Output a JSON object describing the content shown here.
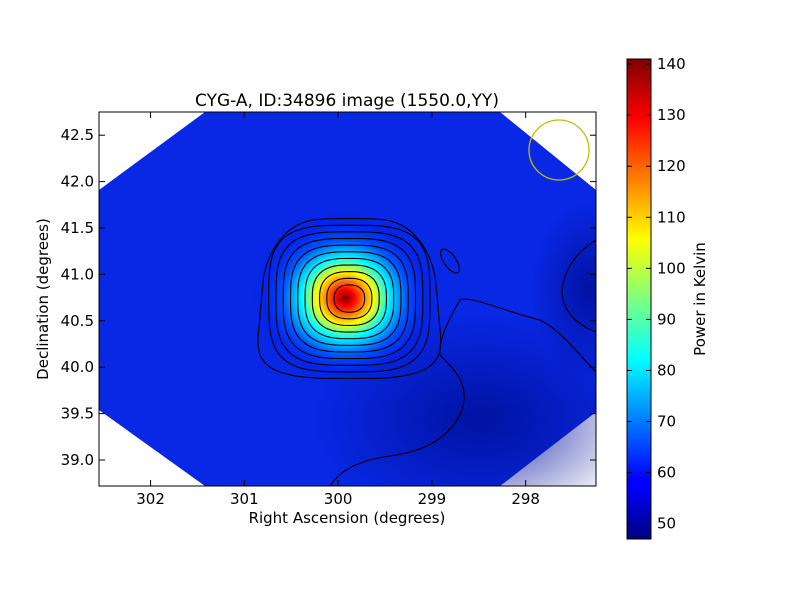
{
  "chart_data": {
    "type": "heatmap",
    "title": "CYG-A, ID:34896 image (1550.0,YY)",
    "xlabel": "Right Ascension (degrees)",
    "ylabel": "Declination (degrees)",
    "xlim": [
      302.55,
      297.25
    ],
    "ylim": [
      38.72,
      42.75
    ],
    "x_ticks": [
      {
        "value": 302,
        "label": "302"
      },
      {
        "value": 301,
        "label": "301"
      },
      {
        "value": 300,
        "label": "300"
      },
      {
        "value": 299,
        "label": "299"
      },
      {
        "value": 298,
        "label": "298"
      }
    ],
    "y_ticks": [
      {
        "value": 39.0,
        "label": "39.0"
      },
      {
        "value": 39.5,
        "label": "39.5"
      },
      {
        "value": 40.0,
        "label": "40.0"
      },
      {
        "value": 40.5,
        "label": "40.5"
      },
      {
        "value": 41.0,
        "label": "41.0"
      },
      {
        "value": 41.5,
        "label": "41.5"
      },
      {
        "value": 42.0,
        "label": "42.0"
      },
      {
        "value": 42.5,
        "label": "42.5"
      }
    ],
    "colorbar": {
      "label": "Power in Kelvin",
      "colormap": "jet",
      "range": [
        47,
        141
      ],
      "ticks": [
        {
          "value": 50,
          "label": "50"
        },
        {
          "value": 60,
          "label": "60"
        },
        {
          "value": 70,
          "label": "70"
        },
        {
          "value": 80,
          "label": "80"
        },
        {
          "value": 90,
          "label": "90"
        },
        {
          "value": 100,
          "label": "100"
        },
        {
          "value": 110,
          "label": "110"
        },
        {
          "value": 120,
          "label": "120"
        },
        {
          "value": 130,
          "label": "130"
        },
        {
          "value": 140,
          "label": "140"
        }
      ]
    },
    "source": {
      "name": "CYG-A",
      "ra": 299.88,
      "dec": 40.74,
      "peak_kelvin": 140,
      "background_kelvin": 57
    },
    "beam": {
      "ra": 297.6,
      "dec": 42.32,
      "color": "#bfbf00"
    },
    "contour_count": 11,
    "grid": false
  }
}
